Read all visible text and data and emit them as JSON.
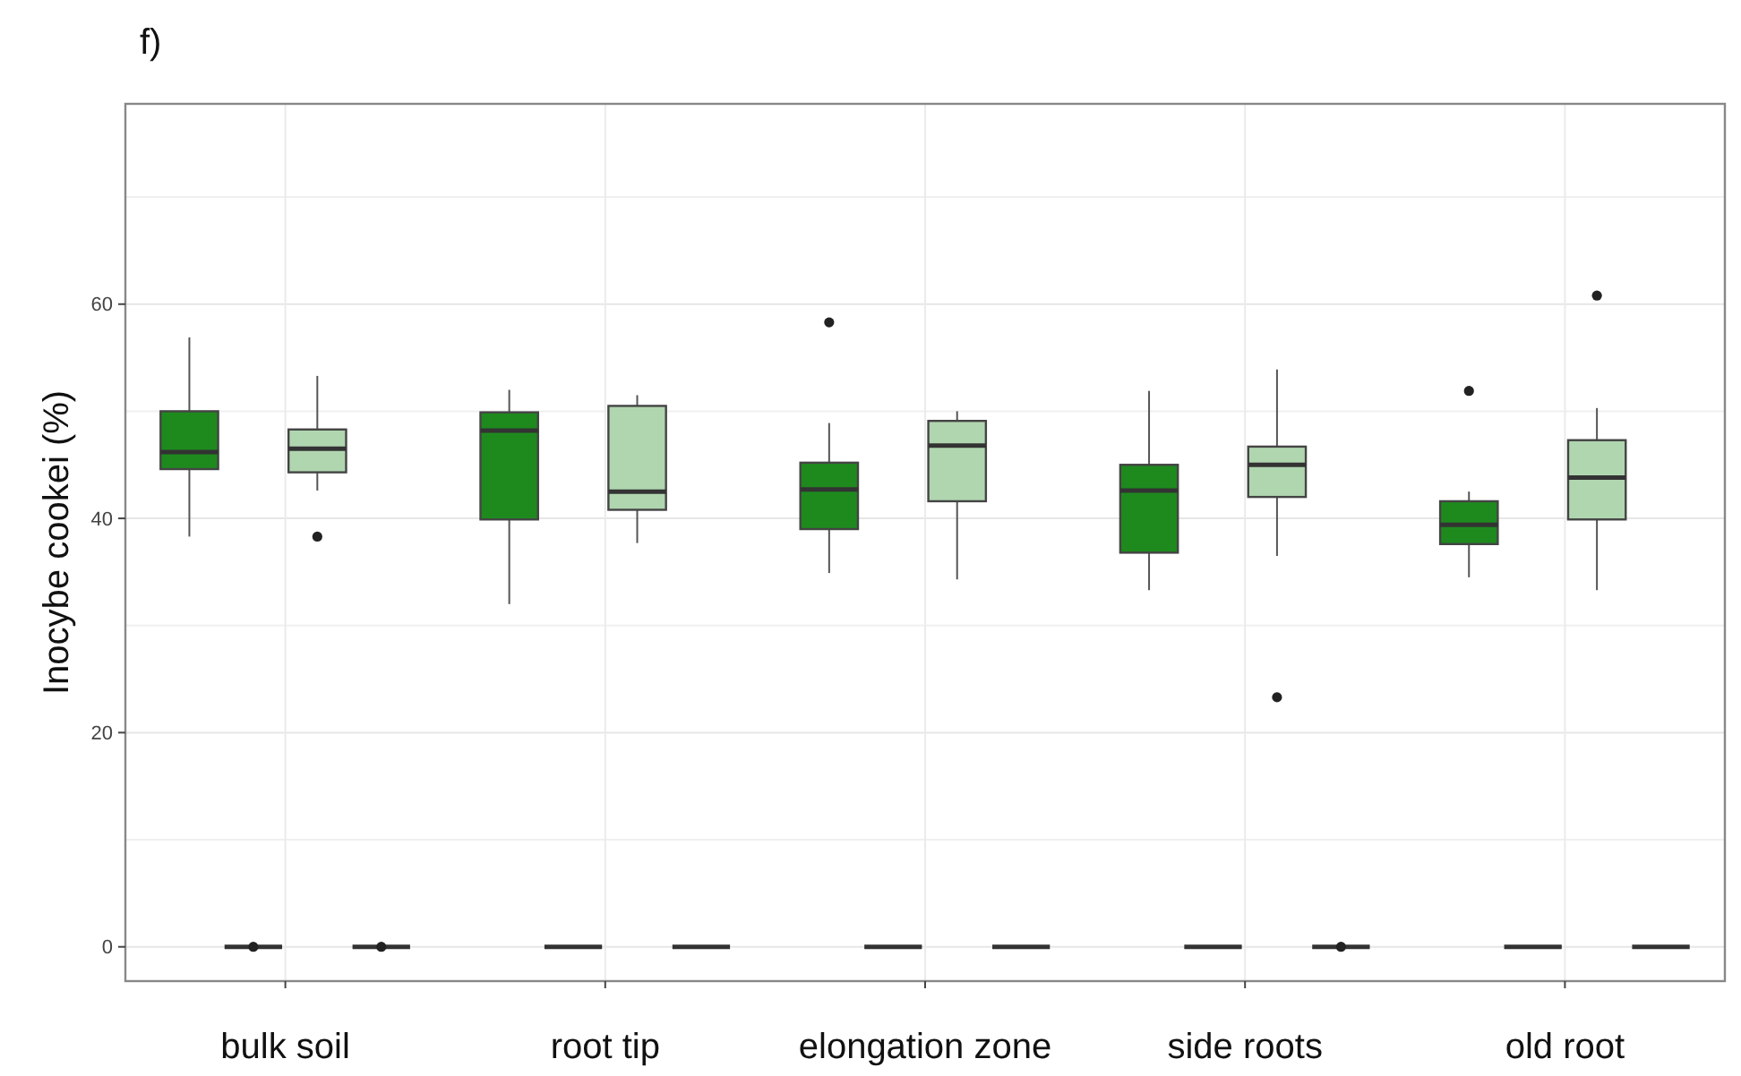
{
  "chart_data": {
    "type": "box",
    "title": "f)",
    "ylabel": "Inocybe cookei (%)",
    "categories": [
      "bulk soil",
      "root tip",
      "elongation zone",
      "side roots",
      "old root"
    ],
    "ylim": [
      -3.2,
      78.7
    ],
    "yticks": [
      0,
      20,
      40,
      60
    ],
    "grid": true,
    "series": [
      {
        "color": "#1e8a1e",
        "boxes": [
          {
            "low": 38.3,
            "q1": 44.6,
            "median": 46.2,
            "q3": 50.0,
            "high": 56.9
          },
          {
            "low": 32.0,
            "q1": 39.9,
            "median": 48.2,
            "q3": 49.9,
            "high": 52.0
          },
          {
            "low": 34.9,
            "q1": 39.0,
            "median": 42.7,
            "q3": 45.2,
            "high": 48.9,
            "outliers": [
              58.3
            ]
          },
          {
            "low": 33.3,
            "q1": 36.8,
            "median": 42.6,
            "q3": 45.0,
            "high": 51.9
          },
          {
            "low": 34.5,
            "q1": 37.6,
            "median": 39.4,
            "q3": 41.6,
            "high": 42.5,
            "outliers": [
              51.9
            ]
          }
        ]
      },
      {
        "color": "#333333",
        "boxes": [
          {
            "low": 0,
            "q1": 0,
            "median": 0,
            "q3": 0,
            "high": 0,
            "outliers": [
              0
            ]
          },
          {
            "low": 0,
            "q1": 0,
            "median": 0,
            "q3": 0,
            "high": 0
          },
          {
            "low": 0,
            "q1": 0,
            "median": 0,
            "q3": 0,
            "high": 0
          },
          {
            "low": 0,
            "q1": 0,
            "median": 0,
            "q3": 0,
            "high": 0
          },
          {
            "low": 0,
            "q1": 0,
            "median": 0,
            "q3": 0,
            "high": 0
          }
        ]
      },
      {
        "color": "#b0d6b0",
        "boxes": [
          {
            "low": 42.6,
            "q1": 44.3,
            "median": 46.5,
            "q3": 48.3,
            "high": 53.3,
            "outliers": [
              38.3
            ]
          },
          {
            "low": 37.7,
            "q1": 40.8,
            "median": 42.5,
            "q3": 50.5,
            "high": 51.5
          },
          {
            "low": 34.3,
            "q1": 41.6,
            "median": 46.8,
            "q3": 49.1,
            "high": 50.0
          },
          {
            "low": 36.5,
            "q1": 42.0,
            "median": 45.0,
            "q3": 46.7,
            "high": 53.9,
            "outliers": [
              23.3
            ]
          },
          {
            "low": 33.3,
            "q1": 39.9,
            "median": 43.8,
            "q3": 47.3,
            "high": 50.3,
            "outliers": [
              60.8
            ]
          }
        ]
      },
      {
        "color": "#333333",
        "boxes": [
          {
            "low": 0,
            "q1": 0,
            "median": 0,
            "q3": 0,
            "high": 0,
            "outliers": [
              0
            ]
          },
          {
            "low": 0,
            "q1": 0,
            "median": 0,
            "q3": 0,
            "high": 0
          },
          {
            "low": 0,
            "q1": 0,
            "median": 0,
            "q3": 0,
            "high": 0
          },
          {
            "low": 0,
            "q1": 0,
            "median": 0,
            "q3": 0,
            "high": 0,
            "outliers": [
              0
            ]
          },
          {
            "low": 0,
            "q1": 0,
            "median": 0,
            "q3": 0,
            "high": 0
          }
        ]
      }
    ]
  }
}
